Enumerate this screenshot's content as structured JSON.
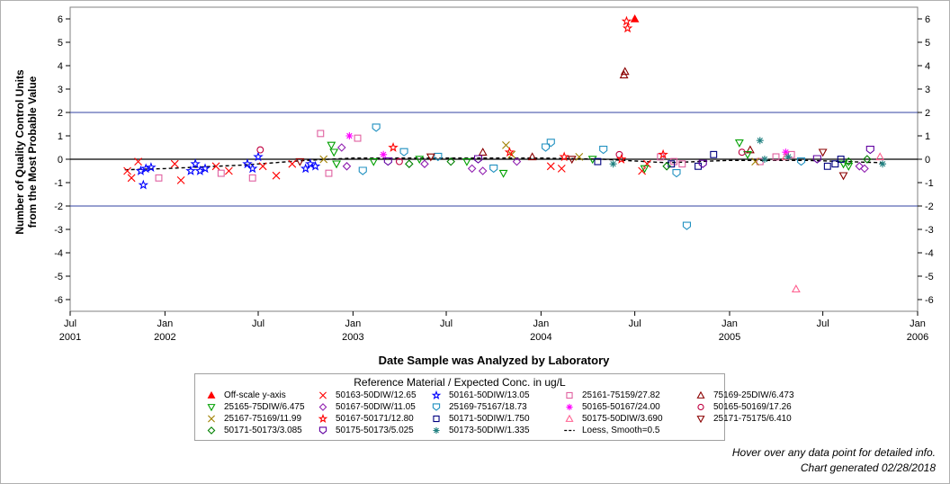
{
  "footer": {
    "hover_note": "Hover over any data point for detailed info.",
    "generated": "Chart generated 02/28/2018"
  },
  "legend": {
    "title": "Reference Material / Expected Conc. in ug/L",
    "items": [
      {
        "label": "Off-scale y-axis",
        "marker": "triangle-filled",
        "color": "#ff0000"
      },
      {
        "label": "50163-50DIW/12.65",
        "marker": "x",
        "color": "#ff0000"
      },
      {
        "label": "50161-50DIW/13.05",
        "marker": "star",
        "color": "#0000ff"
      },
      {
        "label": "25161-75159/27.82",
        "marker": "square",
        "color": "#e060a0"
      },
      {
        "label": "75169-25DIW/6.473",
        "marker": "triangle",
        "color": "#8b0000"
      },
      {
        "label": "25165-75DIW/6.475",
        "marker": "triangle-down",
        "color": "#00a000"
      },
      {
        "label": "50167-50DIW/11.05",
        "marker": "diamond",
        "color": "#9020b0"
      },
      {
        "label": "25169-75167/18.73",
        "marker": "shield",
        "color": "#2090c0"
      },
      {
        "label": "50165-50167/24.00",
        "marker": "asterisk",
        "color": "#ff00ff"
      },
      {
        "label": "50165-50169/17.26",
        "marker": "circle",
        "color": "#c00040"
      },
      {
        "label": "25167-75169/11.99",
        "marker": "x",
        "color": "#a08000"
      },
      {
        "label": "50167-50171/12.80",
        "marker": "star",
        "color": "#ff0000"
      },
      {
        "label": "50171-50DIW/1.750",
        "marker": "square",
        "color": "#000080"
      },
      {
        "label": "50175-50DIW/3.690",
        "marker": "triangle",
        "color": "#ff6090"
      },
      {
        "label": "25171-75175/6.410",
        "marker": "triangle-down",
        "color": "#8b0000"
      },
      {
        "label": "50171-50173/3.085",
        "marker": "diamond",
        "color": "#008000"
      },
      {
        "label": "50175-50173/5.025",
        "marker": "shield",
        "color": "#6000a0"
      },
      {
        "label": "50173-50DIW/1.335",
        "marker": "asterisk",
        "color": "#208080"
      },
      {
        "label": "Loess, Smooth=0.5",
        "marker": "dash",
        "color": "#000000"
      }
    ]
  },
  "chart_data": {
    "type": "scatter",
    "title": "",
    "xlabel": "Date Sample was Analyzed by Laboratory",
    "ylabel": "Number of Quality Control Units\nfrom the Most Probable Value",
    "xlim": [
      "2001-07-01",
      "2006-01-01"
    ],
    "ylim": [
      -6.5,
      6.5
    ],
    "y_ticks": [
      -6,
      -5,
      -4,
      -3,
      -2,
      -1,
      0,
      1,
      2,
      3,
      4,
      5,
      6
    ],
    "x_ticks": [
      {
        "date": "2001-07-01",
        "label": "Jul",
        "year": "2001"
      },
      {
        "date": "2002-01-01",
        "label": "Jan",
        "year": "2002"
      },
      {
        "date": "2002-07-01",
        "label": "Jul",
        "year": ""
      },
      {
        "date": "2003-01-01",
        "label": "Jan",
        "year": "2003"
      },
      {
        "date": "2003-07-01",
        "label": "Jul",
        "year": ""
      },
      {
        "date": "2004-01-01",
        "label": "Jan",
        "year": "2004"
      },
      {
        "date": "2004-07-01",
        "label": "Jul",
        "year": ""
      },
      {
        "date": "2005-01-01",
        "label": "Jan",
        "year": "2005"
      },
      {
        "date": "2005-07-01",
        "label": "Jul",
        "year": ""
      },
      {
        "date": "2006-01-01",
        "label": "Jan",
        "year": "2006"
      }
    ],
    "reference_lines": [
      2,
      0,
      -2
    ],
    "right_axis": true,
    "series": [
      {
        "marker": "triangle-filled",
        "color": "#ff0000",
        "points": [
          [
            "2004-07-01",
            6.0
          ]
        ]
      },
      {
        "marker": "x",
        "color": "#ff0000",
        "points": [
          [
            "2001-10-20",
            -0.5
          ],
          [
            "2001-10-28",
            -0.8
          ],
          [
            "2001-11-10",
            -0.1
          ],
          [
            "2002-01-20",
            -0.2
          ],
          [
            "2002-02-01",
            -0.9
          ],
          [
            "2002-04-10",
            -0.3
          ],
          [
            "2002-05-05",
            -0.5
          ],
          [
            "2002-07-10",
            -0.3
          ],
          [
            "2002-08-05",
            -0.7
          ],
          [
            "2002-09-05",
            -0.2
          ],
          [
            "2004-01-20",
            -0.3
          ],
          [
            "2004-02-10",
            -0.4
          ],
          [
            "2004-07-15",
            -0.5
          ],
          [
            "2004-07-25",
            -0.2
          ]
        ]
      },
      {
        "marker": "star",
        "color": "#0000ff",
        "points": [
          [
            "2001-11-15",
            -0.5
          ],
          [
            "2001-11-20",
            -1.1
          ],
          [
            "2001-11-25",
            -0.4
          ],
          [
            "2001-12-05",
            -0.35
          ],
          [
            "2002-02-20",
            -0.5
          ],
          [
            "2002-03-01",
            -0.2
          ],
          [
            "2002-03-10",
            -0.5
          ],
          [
            "2002-03-20",
            -0.4
          ],
          [
            "2002-06-10",
            -0.2
          ],
          [
            "2002-06-20",
            -0.4
          ],
          [
            "2002-07-01",
            0.1
          ],
          [
            "2002-10-01",
            -0.4
          ],
          [
            "2002-10-10",
            -0.2
          ],
          [
            "2002-10-20",
            -0.3
          ]
        ]
      },
      {
        "marker": "square",
        "color": "#e060a0",
        "points": [
          [
            "2001-12-20",
            -0.8
          ],
          [
            "2002-04-20",
            -0.6
          ],
          [
            "2002-06-20",
            -0.8
          ],
          [
            "2002-10-30",
            1.1
          ],
          [
            "2002-11-15",
            -0.6
          ],
          [
            "2003-01-10",
            0.9
          ],
          [
            "2004-08-20",
            0.1
          ],
          [
            "2004-09-15",
            -0.1
          ],
          [
            "2004-10-01",
            -0.2
          ],
          [
            "2005-03-01",
            -0.1
          ],
          [
            "2005-04-01",
            0.1
          ],
          [
            "2005-05-01",
            0.2
          ]
        ]
      },
      {
        "marker": "triangle",
        "color": "#8b0000",
        "points": [
          [
            "2004-06-10",
            3.6
          ],
          [
            "2004-06-12",
            3.75
          ],
          [
            "2003-09-10",
            0.3
          ],
          [
            "2003-12-15",
            0.1
          ],
          [
            "2005-02-10",
            0.4
          ]
        ]
      },
      {
        "marker": "triangle-down",
        "color": "#00a000",
        "points": [
          [
            "2002-11-20",
            0.6
          ],
          [
            "2002-11-25",
            0.3
          ],
          [
            "2002-11-30",
            -0.2
          ],
          [
            "2003-02-10",
            -0.1
          ],
          [
            "2003-05-10",
            0.0
          ],
          [
            "2003-08-10",
            -0.1
          ],
          [
            "2003-10-20",
            -0.6
          ],
          [
            "2004-04-10",
            0.0
          ],
          [
            "2004-07-20",
            -0.4
          ],
          [
            "2005-01-20",
            0.7
          ],
          [
            "2005-02-05",
            0.2
          ],
          [
            "2005-08-10",
            -0.2
          ],
          [
            "2005-08-20",
            -0.3
          ]
        ]
      },
      {
        "marker": "diamond",
        "color": "#9020b0",
        "points": [
          [
            "2002-12-10",
            0.5
          ],
          [
            "2002-12-20",
            -0.3
          ],
          [
            "2003-05-20",
            -0.2
          ],
          [
            "2003-08-20",
            -0.4
          ],
          [
            "2003-09-10",
            -0.5
          ],
          [
            "2003-11-15",
            -0.1
          ],
          [
            "2005-09-10",
            -0.3
          ],
          [
            "2005-09-20",
            -0.4
          ]
        ]
      },
      {
        "marker": "shield",
        "color": "#2090c0",
        "points": [
          [
            "2003-01-20",
            -0.5
          ],
          [
            "2003-02-15",
            1.35
          ],
          [
            "2003-04-10",
            0.3
          ],
          [
            "2003-06-15",
            0.1
          ],
          [
            "2003-10-01",
            -0.4
          ],
          [
            "2004-01-20",
            0.7
          ],
          [
            "2004-01-10",
            0.5
          ],
          [
            "2004-05-01",
            0.4
          ],
          [
            "2004-10-10",
            -2.85
          ],
          [
            "2004-09-20",
            -0.6
          ],
          [
            "2005-05-20",
            -0.1
          ]
        ]
      },
      {
        "marker": "asterisk",
        "color": "#ff00ff",
        "points": [
          [
            "2002-12-25",
            1.0
          ],
          [
            "2003-03-01",
            0.2
          ],
          [
            "2005-04-20",
            0.3
          ]
        ]
      },
      {
        "marker": "circle",
        "color": "#c00040",
        "points": [
          [
            "2002-07-05",
            0.4
          ],
          [
            "2003-04-01",
            -0.1
          ],
          [
            "2004-06-01",
            0.2
          ],
          [
            "2005-01-25",
            0.3
          ]
        ]
      },
      {
        "marker": "x",
        "color": "#a08000",
        "points": [
          [
            "2002-11-05",
            0.0
          ],
          [
            "2003-10-25",
            0.6
          ],
          [
            "2003-11-05",
            0.2
          ],
          [
            "2004-03-15",
            0.1
          ],
          [
            "2005-02-20",
            -0.1
          ]
        ]
      },
      {
        "marker": "star",
        "color": "#ff0000",
        "points": [
          [
            "2004-06-15",
            5.9
          ],
          [
            "2004-06-17",
            5.6
          ],
          [
            "2003-03-20",
            0.5
          ],
          [
            "2003-11-01",
            0.3
          ],
          [
            "2004-02-15",
            0.1
          ],
          [
            "2004-06-05",
            0.0
          ],
          [
            "2004-08-25",
            0.2
          ]
        ]
      },
      {
        "marker": "square",
        "color": "#000080",
        "points": [
          [
            "2004-04-20",
            -0.1
          ],
          [
            "2004-09-10",
            -0.2
          ],
          [
            "2004-11-01",
            -0.3
          ],
          [
            "2004-12-01",
            0.2
          ],
          [
            "2005-07-10",
            -0.3
          ],
          [
            "2005-07-25",
            -0.2
          ],
          [
            "2005-08-05",
            0.0
          ]
        ]
      },
      {
        "marker": "triangle",
        "color": "#ff6090",
        "points": [
          [
            "2005-05-10",
            -5.55
          ],
          [
            "2005-04-20",
            0.1
          ],
          [
            "2005-10-20",
            0.1
          ]
        ]
      },
      {
        "marker": "triangle-down",
        "color": "#8b0000",
        "points": [
          [
            "2002-09-20",
            -0.1
          ],
          [
            "2003-06-01",
            0.1
          ],
          [
            "2004-03-01",
            0.0
          ],
          [
            "2005-07-01",
            0.3
          ],
          [
            "2005-08-10",
            -0.7
          ]
        ]
      },
      {
        "marker": "diamond",
        "color": "#008000",
        "points": [
          [
            "2003-04-20",
            -0.2
          ],
          [
            "2003-07-10",
            -0.1
          ],
          [
            "2004-09-01",
            -0.3
          ],
          [
            "2005-08-20",
            -0.1
          ],
          [
            "2005-09-25",
            0.0
          ]
        ]
      },
      {
        "marker": "shield",
        "color": "#6000a0",
        "points": [
          [
            "2003-03-10",
            -0.1
          ],
          [
            "2003-09-01",
            0.0
          ],
          [
            "2004-11-10",
            -0.2
          ],
          [
            "2005-06-20",
            0.0
          ],
          [
            "2005-10-01",
            0.4
          ]
        ]
      },
      {
        "marker": "asterisk",
        "color": "#208080",
        "points": [
          [
            "2004-05-20",
            -0.2
          ],
          [
            "2005-03-01",
            0.8
          ],
          [
            "2005-03-10",
            0.0
          ],
          [
            "2005-04-25",
            0.1
          ],
          [
            "2005-10-25",
            -0.2
          ]
        ]
      }
    ],
    "loess_line": [
      [
        "2001-10-15",
        -0.45
      ],
      [
        "2002-01-01",
        -0.4
      ],
      [
        "2002-06-01",
        -0.25
      ],
      [
        "2002-10-01",
        -0.05
      ],
      [
        "2003-01-01",
        0.05
      ],
      [
        "2003-07-01",
        0.05
      ],
      [
        "2004-01-01",
        0.05
      ],
      [
        "2004-05-01",
        0.0
      ],
      [
        "2004-09-01",
        -0.15
      ],
      [
        "2005-01-01",
        -0.05
      ],
      [
        "2005-06-01",
        -0.05
      ],
      [
        "2005-10-25",
        -0.15
      ]
    ]
  }
}
